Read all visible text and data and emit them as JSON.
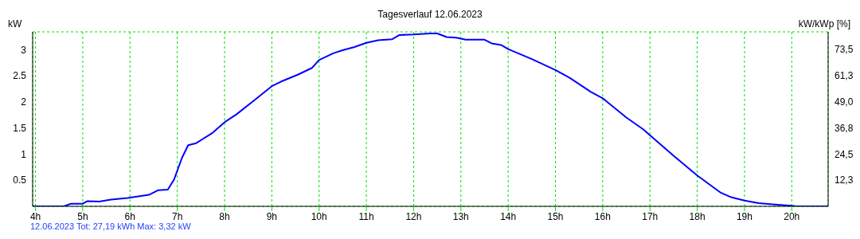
{
  "chart_data": {
    "type": "line",
    "title": "Tagesverlauf 12.06.2023",
    "ylabel": "kW",
    "y2label": "kW/kWp [%]",
    "annotations": [
      "12.06.2023 Tot: 27,19 kWh Max: 3,32 kW"
    ],
    "x": [
      3.94,
      4.6,
      4.75,
      5.0,
      5.1,
      5.35,
      5.6,
      5.95,
      6.4,
      6.6,
      6.8,
      6.93,
      7.1,
      7.23,
      7.4,
      7.75,
      8.0,
      8.25,
      8.6,
      9.0,
      9.2,
      9.55,
      9.85,
      10.0,
      10.3,
      10.5,
      10.75,
      11.0,
      11.25,
      11.55,
      11.7,
      12.0,
      12.35,
      12.5,
      12.7,
      12.9,
      13.1,
      13.5,
      13.65,
      13.85,
      14.0,
      14.5,
      15.0,
      15.3,
      15.75,
      16.0,
      16.5,
      16.85,
      17.0,
      17.5,
      18.0,
      18.5,
      18.7,
      19.0,
      19.3,
      19.7,
      20.0,
      20.1,
      20.77
    ],
    "series": [
      {
        "color": "#0000ff",
        "values": [
          0,
          0,
          0.05,
          0.05,
          0.1,
          0.09,
          0.13,
          0.16,
          0.22,
          0.31,
          0.32,
          0.51,
          0.93,
          1.17,
          1.21,
          1.41,
          1.61,
          1.76,
          2.01,
          2.3,
          2.39,
          2.52,
          2.65,
          2.8,
          2.93,
          2.99,
          3.05,
          3.13,
          3.18,
          3.2,
          3.28,
          3.29,
          3.31,
          3.31,
          3.24,
          3.23,
          3.19,
          3.19,
          3.12,
          3.09,
          3.01,
          2.82,
          2.61,
          2.46,
          2.19,
          2.07,
          1.7,
          1.48,
          1.36,
          0.97,
          0.59,
          0.26,
          0.18,
          0.11,
          0.06,
          0.03,
          0.01,
          0,
          0
        ]
      }
    ],
    "xlim": [
      3.94,
      20.77
    ],
    "xticks": [
      {
        "value": 4,
        "label": "4h"
      },
      {
        "value": 5,
        "label": "5h"
      },
      {
        "value": 6,
        "label": "6h"
      },
      {
        "value": 7,
        "label": "7h"
      },
      {
        "value": 8,
        "label": "8h"
      },
      {
        "value": 9,
        "label": "9h"
      },
      {
        "value": 10,
        "label": "10h"
      },
      {
        "value": 11,
        "label": "11h"
      },
      {
        "value": 12,
        "label": "12h"
      },
      {
        "value": 13,
        "label": "13h"
      },
      {
        "value": 14,
        "label": "14h"
      },
      {
        "value": 15,
        "label": "15h"
      },
      {
        "value": 16,
        "label": "16h"
      },
      {
        "value": 17,
        "label": "17h"
      },
      {
        "value": 18,
        "label": "18h"
      },
      {
        "value": 19,
        "label": "19h"
      },
      {
        "value": 20,
        "label": "20h"
      }
    ],
    "ylim": [
      0,
      3.34
    ],
    "yticks": [
      0.5,
      1,
      1.5,
      2,
      2.5,
      3
    ],
    "y2lim": [
      0,
      81.8
    ],
    "y2ticks": [
      {
        "value": 12.25,
        "label": "12,3"
      },
      {
        "value": 24.5,
        "label": "24,5"
      },
      {
        "value": 36.75,
        "label": "36,8"
      },
      {
        "value": 49,
        "label": "49,0"
      },
      {
        "value": 61.25,
        "label": "61,3"
      },
      {
        "value": 73.5,
        "label": "73,5"
      }
    ],
    "grid": true,
    "marker": "none",
    "line_style": "solid"
  }
}
